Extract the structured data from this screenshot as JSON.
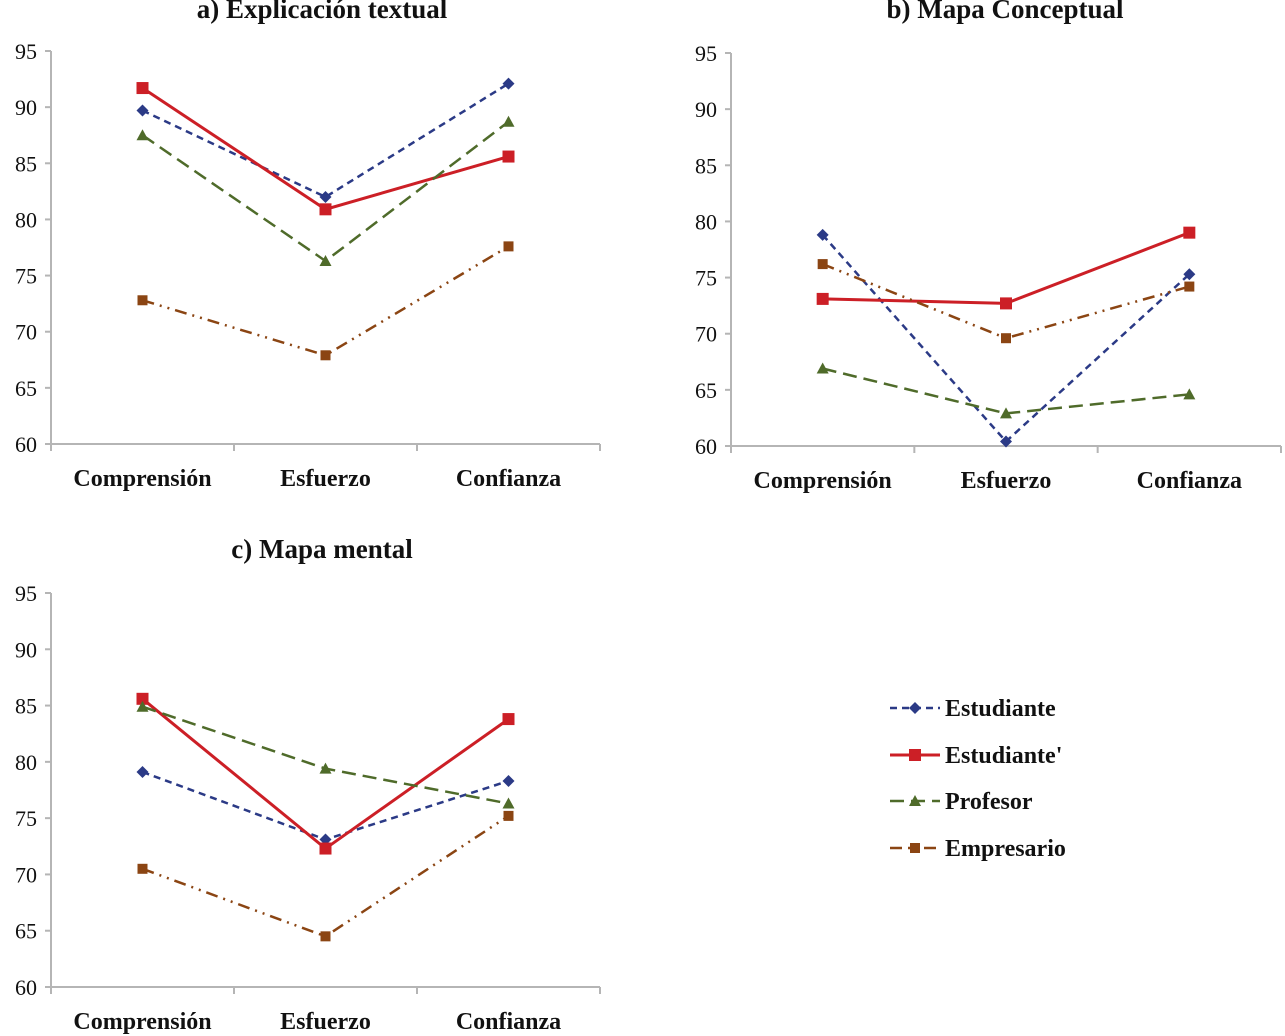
{
  "chart_data": [
    {
      "type": "line",
      "title": "a) Explicación textual",
      "categories": [
        "Comprensión",
        "Esfuerzo",
        "Confianza"
      ],
      "ylim": [
        60,
        95
      ],
      "yticks": [
        60,
        65,
        70,
        75,
        80,
        85,
        90,
        95
      ],
      "grid": false,
      "series": [
        {
          "name": "Estudiante",
          "values": [
            89.7,
            82.0,
            92.1
          ]
        },
        {
          "name": "Estudiante'",
          "values": [
            91.7,
            80.9,
            85.6
          ]
        },
        {
          "name": "Profesor",
          "values": [
            87.5,
            76.3,
            88.7
          ]
        },
        {
          "name": "Empresario",
          "values": [
            72.8,
            67.9,
            77.6
          ]
        }
      ]
    },
    {
      "type": "line",
      "title": "b) Mapa Conceptual",
      "categories": [
        "Comprensión",
        "Esfuerzo",
        "Confianza"
      ],
      "ylim": [
        60,
        95
      ],
      "yticks": [
        60,
        65,
        70,
        75,
        80,
        85,
        90,
        95
      ],
      "grid": false,
      "series": [
        {
          "name": "Estudiante",
          "values": [
            78.8,
            60.4,
            75.3
          ]
        },
        {
          "name": "Estudiante'",
          "values": [
            73.1,
            72.7,
            79.0
          ]
        },
        {
          "name": "Profesor",
          "values": [
            66.9,
            62.9,
            64.6
          ]
        },
        {
          "name": "Empresario",
          "values": [
            76.2,
            69.6,
            74.2
          ]
        }
      ]
    },
    {
      "type": "line",
      "title": "c) Mapa mental",
      "categories": [
        "Comprensión",
        "Esfuerzo",
        "Confianza"
      ],
      "ylim": [
        60,
        95
      ],
      "yticks": [
        60,
        65,
        70,
        75,
        80,
        85,
        90,
        95
      ],
      "grid": false,
      "series": [
        {
          "name": "Estudiante",
          "values": [
            79.1,
            73.1,
            78.3
          ]
        },
        {
          "name": "Estudiante'",
          "values": [
            85.6,
            72.3,
            83.8
          ]
        },
        {
          "name": "Profesor",
          "values": [
            84.9,
            79.4,
            76.3
          ]
        },
        {
          "name": "Empresario",
          "values": [
            70.5,
            64.5,
            75.2
          ]
        }
      ]
    }
  ],
  "legend": {
    "placement": "bottom-right",
    "entries": [
      {
        "name": "Estudiante",
        "color": "#2b3a86",
        "marker": "diamond",
        "dash": "short-dash"
      },
      {
        "name": "Estudiante'",
        "color": "#cc1f26",
        "marker": "square",
        "dash": "solid"
      },
      {
        "name": "Profesor",
        "color": "#4f6b2a",
        "marker": "triangle",
        "dash": "long-dash"
      },
      {
        "name": "Empresario",
        "color": "#8b4513",
        "marker": "square",
        "dash": "dash-dot-dot"
      }
    ]
  }
}
